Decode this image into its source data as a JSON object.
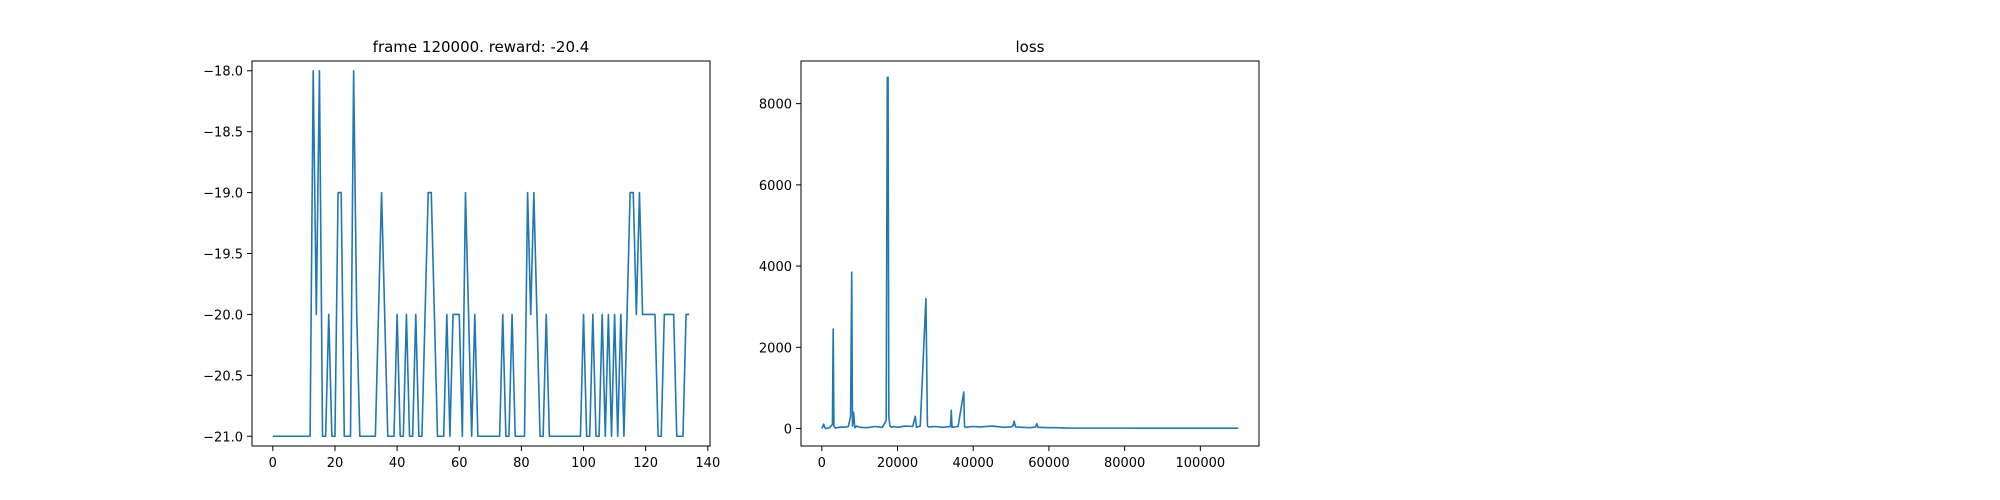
{
  "figure": {
    "background": "#ffffff"
  },
  "chart_data": [
    {
      "type": "line",
      "title": "frame 120000. reward: -20.4",
      "xlabel": "",
      "ylabel": "",
      "xlim": [
        -6.7,
        140.7
      ],
      "ylim": [
        -21.08,
        -17.92
      ],
      "xticks": [
        0,
        20,
        40,
        60,
        80,
        100,
        120,
        140
      ],
      "yticks": [
        -21.0,
        -20.5,
        -20.0,
        -19.5,
        -19.0,
        -18.5,
        -18.0
      ],
      "xtick_labels": [
        "0",
        "20",
        "40",
        "60",
        "80",
        "100",
        "120",
        "140"
      ],
      "ytick_labels": [
        "−21.0",
        "−20.5",
        "−20.0",
        "−19.5",
        "−19.0",
        "−18.5",
        "−18.0"
      ],
      "grid": false,
      "series": [
        {
          "color": "#1f77b4",
          "x": [
            0,
            1,
            2,
            3,
            4,
            5,
            6,
            7,
            8,
            9,
            10,
            11,
            12,
            13,
            14,
            15,
            16,
            17,
            18,
            19,
            20,
            21,
            22,
            23,
            24,
            25,
            26,
            27,
            28,
            29,
            30,
            31,
            32,
            33,
            34,
            35,
            36,
            37,
            38,
            39,
            40,
            41,
            42,
            43,
            44,
            45,
            46,
            47,
            48,
            49,
            50,
            51,
            52,
            53,
            54,
            55,
            56,
            57,
            58,
            59,
            60,
            61,
            62,
            63,
            64,
            65,
            66,
            67,
            68,
            69,
            70,
            71,
            72,
            73,
            74,
            75,
            76,
            77,
            78,
            79,
            80,
            81,
            82,
            83,
            84,
            85,
            86,
            87,
            88,
            89,
            90,
            91,
            92,
            93,
            94,
            95,
            96,
            97,
            98,
            99,
            100,
            101,
            102,
            103,
            104,
            105,
            106,
            107,
            108,
            109,
            110,
            111,
            112,
            113,
            114,
            115,
            116,
            117,
            118,
            119,
            120,
            121,
            122,
            123,
            124,
            125,
            126,
            127,
            128,
            129,
            130,
            131,
            132,
            133,
            134
          ],
          "y": [
            -21,
            -21,
            -21,
            -21,
            -21,
            -21,
            -21,
            -21,
            -21,
            -21,
            -21,
            -21,
            -21,
            -18,
            -20,
            -18,
            -21,
            -21,
            -20,
            -21,
            -21,
            -19,
            -19,
            -21,
            -21,
            -21,
            -18,
            -20,
            -21,
            -21,
            -21,
            -21,
            -21,
            -21,
            -20,
            -19,
            -20,
            -21,
            -21,
            -21,
            -20,
            -21,
            -21,
            -20,
            -21,
            -21,
            -20,
            -21,
            -21,
            -20,
            -19,
            -19,
            -20,
            -21,
            -21,
            -21,
            -20,
            -21,
            -20,
            -20,
            -20,
            -21,
            -19,
            -20,
            -21,
            -20,
            -21,
            -21,
            -21,
            -21,
            -21,
            -21,
            -21,
            -21,
            -20,
            -21,
            -21,
            -20,
            -21,
            -21,
            -21,
            -21,
            -19,
            -20,
            -19,
            -20,
            -21,
            -21,
            -20,
            -21,
            -21,
            -21,
            -21,
            -21,
            -21,
            -21,
            -21,
            -21,
            -21,
            -21,
            -20,
            -21,
            -21,
            -20,
            -21,
            -21,
            -20,
            -21,
            -20,
            -21,
            -20,
            -21,
            -20,
            -21,
            -20,
            -19,
            -19,
            -20,
            -19,
            -20,
            -20,
            -20,
            -20,
            -20,
            -21,
            -21,
            -20,
            -20,
            -20,
            -20,
            -21,
            -21,
            -21,
            -20,
            -20
          ]
        }
      ]
    },
    {
      "type": "line",
      "title": "loss",
      "xlabel": "",
      "ylabel": "",
      "xlim": [
        -5500,
        115500
      ],
      "ylim": [
        -430,
        9050
      ],
      "xticks": [
        0,
        20000,
        40000,
        60000,
        80000,
        100000
      ],
      "yticks": [
        0,
        2000,
        4000,
        6000,
        8000
      ],
      "xtick_labels": [
        "0",
        "20000",
        "40000",
        "60000",
        "80000",
        "100000"
      ],
      "ytick_labels": [
        "0",
        "2000",
        "4000",
        "6000",
        "8000"
      ],
      "grid": false,
      "series": [
        {
          "color": "#1f77b4",
          "x": [
            0,
            500,
            700,
            1000,
            2000,
            2800,
            3000,
            3200,
            3600,
            5000,
            6000,
            7000,
            7600,
            7900,
            8100,
            8400,
            8700,
            9200,
            10000,
            12000,
            14000,
            16000,
            17000,
            17300,
            17500,
            17700,
            18000,
            18500,
            19000,
            20000,
            22000,
            24000,
            24700,
            25000,
            26000,
            27500,
            27700,
            27900,
            28200,
            30000,
            32000,
            34000,
            34200,
            34400,
            36000,
            37500,
            37700,
            37900,
            40000,
            42000,
            45000,
            48000,
            50000,
            50500,
            50800,
            51200,
            53000,
            55000,
            56500,
            56800,
            57100,
            60000,
            62000,
            64000,
            66000,
            70000,
            80000,
            90000,
            100000,
            110000
          ],
          "y": [
            0,
            110,
            40,
            0,
            20,
            100,
            2450,
            60,
            10,
            40,
            30,
            50,
            300,
            3850,
            60,
            400,
            20,
            60,
            30,
            20,
            50,
            30,
            200,
            8650,
            8650,
            300,
            60,
            30,
            50,
            30,
            60,
            50,
            300,
            30,
            60,
            3200,
            1700,
            60,
            40,
            50,
            30,
            50,
            450,
            30,
            50,
            900,
            60,
            30,
            50,
            40,
            60,
            30,
            40,
            60,
            180,
            40,
            30,
            20,
            40,
            120,
            30,
            20,
            20,
            15,
            10,
            10,
            10,
            8,
            8,
            8
          ]
        }
      ]
    }
  ]
}
